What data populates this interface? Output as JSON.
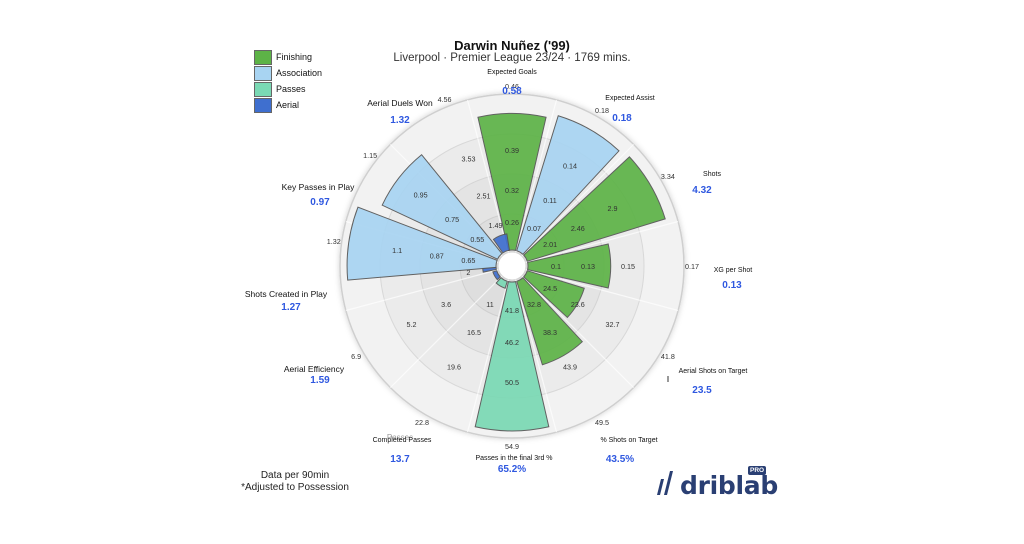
{
  "header": {
    "title": "Darwin Nuñez ('99)",
    "subtitle": "Liverpool · Premier League 23/24 · 1769 mins."
  },
  "legend": [
    {
      "label": "Finishing",
      "color": "#5db347"
    },
    {
      "label": "Association",
      "color": "#a8d4f2"
    },
    {
      "label": "Passes",
      "color": "#7ad9b4"
    },
    {
      "label": "Aerial",
      "color": "#3f6fcf"
    }
  ],
  "chart_data": {
    "type": "radar-bar",
    "value_color": "#2f58e0",
    "series": [
      {
        "name": "Expected Goals",
        "value": "0.58",
        "group": "Finishing",
        "level": 0.9,
        "ticks": [
          "0.26",
          "0.32",
          "0.39",
          "0.46"
        ]
      },
      {
        "name": "Expected Assist",
        "value": "0.18",
        "group": "Association",
        "level": 0.93,
        "ticks": [
          "0.07",
          "0.11",
          "0.14",
          "0.18"
        ]
      },
      {
        "name": "Shots",
        "value": "4.32",
        "group": "Finishing",
        "level": 0.95,
        "ticks": [
          "2.01",
          "2.46",
          "2.9",
          "3.34"
        ]
      },
      {
        "name": "XG per Shot",
        "value": "0.13",
        "group": "Finishing",
        "level": 0.55,
        "ticks": [
          "0.1",
          "0.13",
          "0.15",
          "0.17"
        ]
      },
      {
        "name": "Aerial Shots on Target",
        "value": "23.5",
        "group": "Finishing",
        "level": 0.4,
        "ticks": [
          "24.5",
          "23.6",
          "32.7",
          "41.8"
        ]
      },
      {
        "name": "% Shots on Target",
        "value": "43.5%",
        "group": "Finishing",
        "level": 0.58,
        "ticks": [
          "32.8",
          "38.3",
          "43.9",
          "49.5"
        ]
      },
      {
        "name": "Passes in the final 3rd %",
        "value": "65.2%",
        "group": "Passes",
        "level": 0.98,
        "ticks": [
          "41.8",
          "46.2",
          "50.5",
          "54.9"
        ]
      },
      {
        "name": "Completed Passes",
        "value": "13.7",
        "group": "Passes",
        "level": 0.06,
        "ticks": [
          "11",
          "16.5",
          "19.6",
          "22.8"
        ]
      },
      {
        "name": "Aerial Efficiency",
        "value": "1.59",
        "group": "Aerial",
        "level": 0.02,
        "ticks": [
          "",
          "3.6",
          "5.2",
          "6.9"
        ]
      },
      {
        "name": "Shots Created in Play",
        "value": "1.27",
        "group": "Aerial",
        "level": 0.1,
        "ticks": [
          "2",
          "",
          "",
          ""
        ]
      },
      {
        "name": "Shots Created in Play",
        "value": "1.27",
        "group": "Association",
        "level": 0.98,
        "ticks": [
          "0.65",
          "0.87",
          "1.1",
          "1.32"
        ]
      },
      {
        "name": "Key Passes in Play",
        "value": "0.97",
        "group": "Association",
        "level": 0.84,
        "ticks": [
          "0.55",
          "0.75",
          "0.95",
          "1.15"
        ]
      },
      {
        "name": "Aerial Duels Won",
        "value": "1.32",
        "group": "Aerial",
        "level": 0.12,
        "ticks": [
          "1.49",
          "2.51",
          "3.53",
          "4.56"
        ]
      }
    ],
    "partial_label": "Passes"
  },
  "footer": {
    "note_line1": "Data per 90min",
    "note_line2": "*Adjusted to Possession"
  },
  "brand": {
    "name": "driblab",
    "badge": "PRO"
  }
}
